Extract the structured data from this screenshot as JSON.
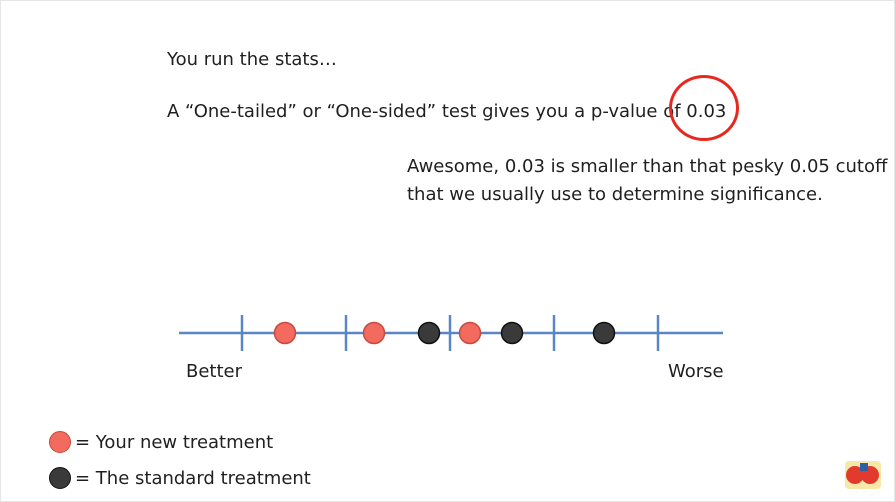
{
  "slide": {
    "line1": "You run the stats…",
    "line2": "A “One-tailed” or “One-sided” test gives you a p-value of 0.03",
    "line3": "Awesome, 0.03 is smaller than that pesky 0.05 cutoff",
    "line4": "that we usually use to determine significance."
  },
  "axis": {
    "left_label": "Better",
    "right_label": "Worse",
    "line_color": "#5b86c6"
  },
  "points": [
    {
      "group": "new",
      "rank": 1
    },
    {
      "group": "new",
      "rank": 2
    },
    {
      "group": "standard",
      "rank": 3
    },
    {
      "group": "new",
      "rank": 4
    },
    {
      "group": "standard",
      "rank": 5
    },
    {
      "group": "standard",
      "rank": 6
    }
  ],
  "legend": {
    "new_label": "= Your new treatment",
    "standard_label": "= The standard treatment"
  },
  "colors": {
    "new_treatment": "#f26b5e",
    "standard_treatment": "#3a3a3a",
    "highlight": "#e8281e"
  }
}
